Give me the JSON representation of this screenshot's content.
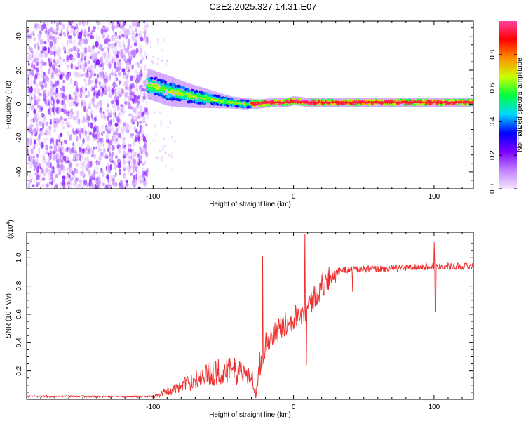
{
  "title": "C2E2.2025.327.14.31.E07",
  "chart_data": [
    {
      "type": "heatmap",
      "xlabel": "Height of straight line (km)",
      "ylabel": "Frequency (Hz)",
      "xlim": [
        -190,
        128
      ],
      "ylim": [
        -50,
        49
      ],
      "xticks": [
        -100,
        0,
        100
      ],
      "yticks": [
        -40,
        -20,
        0,
        20,
        40
      ],
      "colorbar": {
        "label": "Normalized spectral amplitude",
        "ticks": [
          "0.0",
          "0.2",
          "0.4",
          "0.6",
          "0.8"
        ],
        "tick_values": [
          0.0,
          0.2,
          0.4,
          0.6,
          0.8
        ],
        "range": [
          0,
          1
        ],
        "stops": [
          "#f5e6ff",
          "#c080ff",
          "#7a00ff",
          "#0000ff",
          "#00d8ff",
          "#00ff40",
          "#c8ff00",
          "#ff9000",
          "#ff0000",
          "#ff40a0"
        ]
      },
      "noise_region": {
        "x_range": [
          -190,
          -104
        ],
        "freq_range": [
          -50,
          49
        ]
      },
      "ridge": {
        "x": [
          -104,
          -90,
          -75,
          -60,
          -45,
          -35,
          -25,
          -15,
          -5,
          0,
          10,
          30,
          60,
          90,
          128
        ],
        "freq": [
          12,
          8,
          5,
          3,
          1,
          0,
          0,
          1,
          1,
          2,
          1,
          1,
          1,
          1,
          1
        ],
        "halfwidth": [
          5,
          5,
          4,
          3,
          2,
          2,
          1.5,
          1.5,
          1.5,
          1.5,
          1.5,
          1.5,
          1.5,
          1.5,
          1.5
        ]
      }
    },
    {
      "type": "line",
      "xlabel": "Height of straight line (km)",
      "ylabel": "SNR (10 * v/v)",
      "yscale_label": "(x10",
      "yscale_exp": "4",
      "line_color": "#ee3030",
      "xlim": [
        -190,
        128
      ],
      "ylim": [
        0,
        1.18
      ],
      "xticks": [
        -100,
        0,
        100
      ],
      "yticks": [
        "0.2",
        "0.4",
        "0.6",
        "0.8",
        "1.0"
      ],
      "ytick_values": [
        0.2,
        0.4,
        0.6,
        0.8,
        1.0
      ],
      "envelope": {
        "x": [
          -190,
          -100,
          -90,
          -80,
          -70,
          -60,
          -50,
          -40,
          -30,
          -27,
          -24,
          -20,
          -10,
          0,
          10,
          20,
          30,
          40,
          60,
          80,
          100,
          128
        ],
        "y": [
          0.02,
          0.02,
          0.06,
          0.1,
          0.16,
          0.2,
          0.22,
          0.22,
          0.18,
          0.06,
          0.25,
          0.38,
          0.5,
          0.58,
          0.65,
          0.8,
          0.9,
          0.92,
          0.92,
          0.93,
          0.94,
          0.94
        ]
      },
      "spikes": [
        {
          "x": -22,
          "y": 1.01
        },
        {
          "x": 8,
          "y": 1.17
        },
        {
          "x": 9,
          "y": 0.24
        },
        {
          "x": 42,
          "y": 0.76
        },
        {
          "x": 100,
          "y": 1.11
        },
        {
          "x": 101,
          "y": 0.62
        }
      ]
    }
  ]
}
